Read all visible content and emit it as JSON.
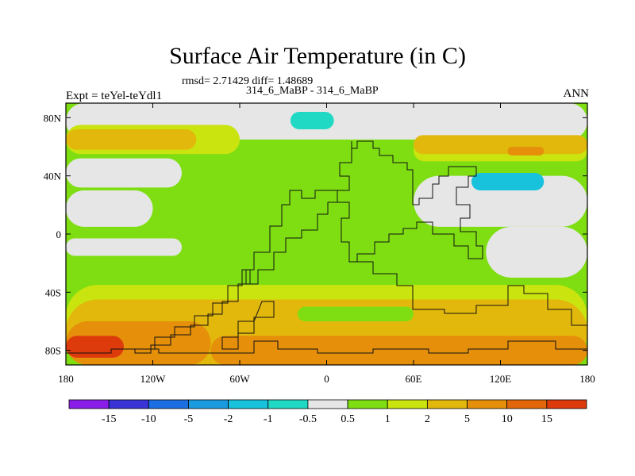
{
  "chart_data": {
    "type": "heatmap",
    "title": "Surface Air Temperature (in C)",
    "stats_text": "rmsd= 2.71429 diff= 1.48689",
    "subtitle": "314_6_MaBP - 314_6_MaBP",
    "left_label": "Expt = teYel-teYdl1",
    "right_label": "ANN",
    "x_ticks": [
      {
        "value": -180,
        "label": "180"
      },
      {
        "value": -120,
        "label": "120W"
      },
      {
        "value": -60,
        "label": "60W"
      },
      {
        "value": 0,
        "label": "0"
      },
      {
        "value": 60,
        "label": "60E"
      },
      {
        "value": 120,
        "label": "120E"
      },
      {
        "value": 180,
        "label": "180"
      }
    ],
    "y_ticks": [
      {
        "value": 80,
        "label": "80N"
      },
      {
        "value": 40,
        "label": "40N"
      },
      {
        "value": 0,
        "label": "0"
      },
      {
        "value": -40,
        "label": "40S"
      },
      {
        "value": -80,
        "label": "80S"
      }
    ],
    "xlim": [
      -180,
      180
    ],
    "ylim": [
      -90,
      90
    ],
    "colorbar": {
      "labels": [
        "-15",
        "-10",
        "-5",
        "-2",
        "-1",
        "-0.5",
        "0.5",
        "1",
        "2",
        "5",
        "10",
        "15"
      ],
      "colors": [
        "#8a1ee8",
        "#3a33d6",
        "#1b6fe3",
        "#1a9be0",
        "#18c2dc",
        "#20d9c4",
        "#e6e6e6",
        "#7ede12",
        "#c9e40e",
        "#e2b80c",
        "#e58f0a",
        "#e3670a",
        "#dd3b0c"
      ]
    },
    "regions": [
      {
        "level": "1",
        "color": "#7ede12",
        "lat": [
          -90,
          90
        ],
        "lon": [
          -180,
          180
        ]
      },
      {
        "level": "-0.5..0.5",
        "color": "#e6e6e6",
        "lat": [
          65,
          90
        ],
        "lon": [
          -180,
          180
        ]
      },
      {
        "level": "-0.5..0.5",
        "color": "#e6e6e6",
        "lat": [
          32,
          52
        ],
        "lon": [
          -180,
          -100
        ]
      },
      {
        "level": "-0.5..0.5",
        "color": "#e6e6e6",
        "lat": [
          5,
          30
        ],
        "lon": [
          -180,
          -120
        ]
      },
      {
        "level": "-0.5..0.5",
        "color": "#e6e6e6",
        "lat": [
          -15,
          -3
        ],
        "lon": [
          -180,
          -100
        ]
      },
      {
        "level": "-0.5..0.5",
        "color": "#e6e6e6",
        "lat": [
          -30,
          5
        ],
        "lon": [
          110,
          180
        ]
      },
      {
        "level": "-0.5..0.5",
        "color": "#e6e6e6",
        "lat": [
          5,
          40
        ],
        "lon": [
          60,
          180
        ]
      },
      {
        "level": "2",
        "color": "#c9e40e",
        "lat": [
          55,
          75
        ],
        "lon": [
          -180,
          -60
        ]
      },
      {
        "level": "2",
        "color": "#c9e40e",
        "lat": [
          50,
          65
        ],
        "lon": [
          60,
          180
        ]
      },
      {
        "level": "5",
        "color": "#e2b80c",
        "lat": [
          55,
          68
        ],
        "lon": [
          60,
          180
        ]
      },
      {
        "level": "5",
        "color": "#e2b80c",
        "lat": [
          58,
          72
        ],
        "lon": [
          -180,
          -90
        ]
      },
      {
        "level": "10",
        "color": "#e58f0a",
        "lat": [
          54,
          60
        ],
        "lon": [
          125,
          150
        ]
      },
      {
        "level": "-1..-0.5",
        "color": "#20d9c4",
        "lat": [
          72,
          84
        ],
        "lon": [
          -25,
          5
        ]
      },
      {
        "level": "-2..-1",
        "color": "#18c2dc",
        "lat": [
          30,
          42
        ],
        "lon": [
          100,
          150
        ]
      },
      {
        "level": "2",
        "color": "#c9e40e",
        "lat": [
          -90,
          -35
        ],
        "lon": [
          -180,
          180
        ]
      },
      {
        "level": "5",
        "color": "#e2b80c",
        "lat": [
          -90,
          -45
        ],
        "lon": [
          -180,
          180
        ]
      },
      {
        "level": "10",
        "color": "#e58f0a",
        "lat": [
          -90,
          -60
        ],
        "lon": [
          -180,
          -80
        ]
      },
      {
        "level": "10",
        "color": "#e58f0a",
        "lat": [
          -90,
          -70
        ],
        "lon": [
          -80,
          180
        ]
      },
      {
        "level": "15",
        "color": "#dd3b0c",
        "lat": [
          -85,
          -70
        ],
        "lon": [
          -180,
          -140
        ]
      },
      {
        "level": "1",
        "color": "#7ede12",
        "lat": [
          -60,
          -50
        ],
        "lon": [
          -20,
          60
        ]
      }
    ]
  }
}
